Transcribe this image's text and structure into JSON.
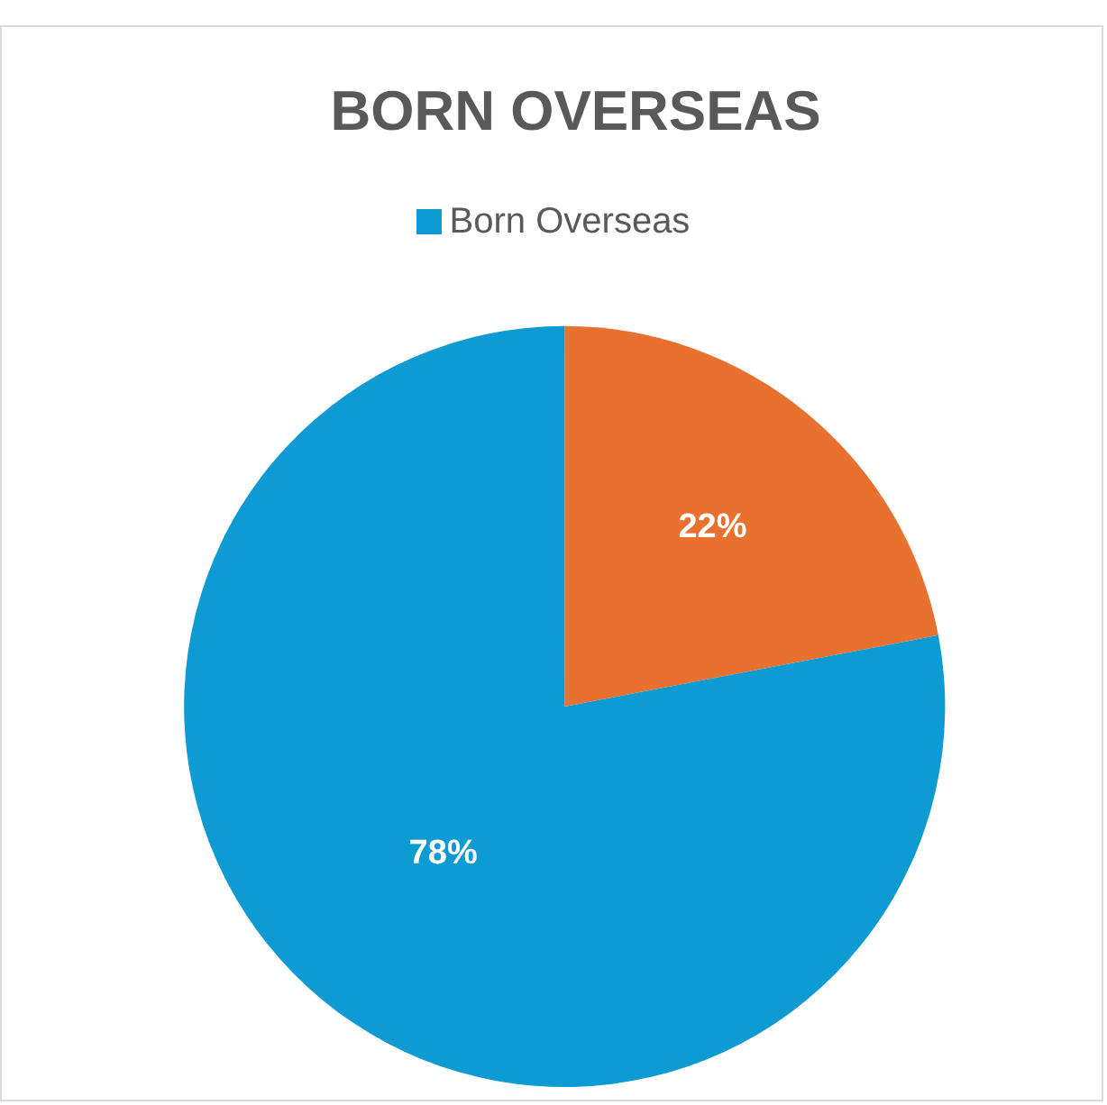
{
  "chart_data": {
    "type": "pie",
    "title": "BORN OVERSEAS",
    "categories": [
      null,
      "Born Overseas"
    ],
    "values": [
      22,
      78
    ],
    "colors": [
      "#e8712f",
      "#0e9ad2"
    ],
    "value_labels": [
      "22%",
      "78%"
    ],
    "legend": "top"
  }
}
